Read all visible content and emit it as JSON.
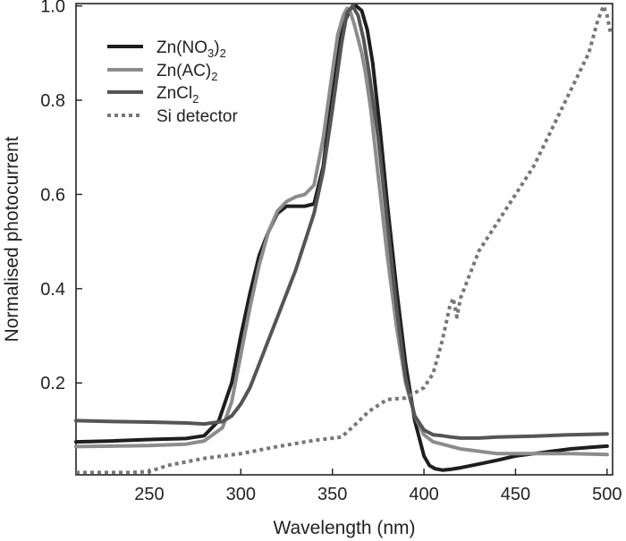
{
  "chart_data": {
    "type": "line",
    "xlabel": "Wavelength (nm)",
    "ylabel": "Normalised photocurrent",
    "xlim": [
      210,
      503
    ],
    "ylim": [
      0.005,
      1.005
    ],
    "xticks": [
      250,
      300,
      350,
      400,
      450,
      500
    ],
    "yticks": [
      0.2,
      0.4,
      0.6,
      0.8,
      1.0
    ],
    "xtick_labels": [
      "250",
      "300",
      "350",
      "400",
      "450",
      "500"
    ],
    "ytick_labels": [
      "0.2",
      "0.4",
      "0.6",
      "0.8",
      "1.0"
    ],
    "grid": false,
    "legend": {
      "position": "top-left",
      "entries": [
        {
          "base": "Zn(NO",
          "sub": "3",
          "tail": ")",
          "sub2": "2"
        },
        {
          "base": "Zn(AC)",
          "sub": "2",
          "tail": "",
          "sub2": ""
        },
        {
          "base": "ZnCl",
          "sub": "2",
          "tail": "",
          "sub2": ""
        },
        {
          "base": "Si detector",
          "sub": "",
          "tail": "",
          "sub2": ""
        }
      ]
    },
    "series": [
      {
        "name": "Zn(NO3)2",
        "color": "#1e1e1e",
        "dash": "solid",
        "x": [
          210,
          230,
          250,
          270,
          280,
          288,
          295,
          300,
          305,
          310,
          315,
          320,
          325,
          330,
          335,
          340,
          345,
          348,
          352,
          356,
          360,
          363,
          366,
          369,
          372,
          376,
          380,
          385,
          390,
          395,
          400,
          403,
          406,
          410,
          415,
          420,
          430,
          440,
          450,
          460,
          470,
          480,
          490,
          500
        ],
        "y": [
          0.075,
          0.077,
          0.08,
          0.082,
          0.088,
          0.12,
          0.2,
          0.3,
          0.39,
          0.47,
          0.52,
          0.56,
          0.575,
          0.575,
          0.575,
          0.58,
          0.66,
          0.76,
          0.88,
          0.96,
          0.995,
          1.0,
          0.99,
          0.95,
          0.88,
          0.74,
          0.58,
          0.4,
          0.24,
          0.12,
          0.045,
          0.025,
          0.018,
          0.015,
          0.017,
          0.02,
          0.028,
          0.036,
          0.045,
          0.05,
          0.055,
          0.06,
          0.063,
          0.066
        ]
      },
      {
        "name": "Zn(AC)2",
        "color": "#8c8c8c",
        "dash": "solid",
        "x": [
          210,
          230,
          250,
          270,
          280,
          290,
          295,
          300,
          305,
          310,
          315,
          320,
          325,
          330,
          335,
          340,
          345,
          350,
          353,
          356,
          358,
          360,
          362,
          364,
          366,
          368,
          371,
          375,
          380,
          385,
          390,
          395,
          400,
          405,
          410,
          415,
          420,
          430,
          440,
          460,
          480,
          500
        ],
        "y": [
          0.065,
          0.066,
          0.067,
          0.07,
          0.077,
          0.105,
          0.16,
          0.26,
          0.36,
          0.45,
          0.52,
          0.565,
          0.585,
          0.595,
          0.6,
          0.62,
          0.72,
          0.86,
          0.94,
          0.98,
          0.995,
          0.985,
          0.96,
          0.93,
          0.9,
          0.86,
          0.78,
          0.64,
          0.47,
          0.32,
          0.2,
          0.13,
          0.09,
          0.075,
          0.07,
          0.065,
          0.06,
          0.055,
          0.05,
          0.05,
          0.05,
          0.048
        ]
      },
      {
        "name": "ZnCl2",
        "color": "#555555",
        "dash": "solid",
        "x": [
          210,
          230,
          250,
          270,
          280,
          290,
          295,
          300,
          305,
          310,
          315,
          320,
          325,
          330,
          335,
          340,
          345,
          350,
          355,
          358,
          361,
          364,
          367,
          370,
          375,
          380,
          385,
          390,
          395,
          400,
          405,
          410,
          415,
          420,
          430,
          440,
          460,
          480,
          500
        ],
        "y": [
          0.12,
          0.118,
          0.117,
          0.115,
          0.113,
          0.118,
          0.13,
          0.155,
          0.19,
          0.24,
          0.29,
          0.34,
          0.39,
          0.44,
          0.5,
          0.56,
          0.65,
          0.78,
          0.92,
          0.985,
          1.0,
          0.98,
          0.93,
          0.86,
          0.72,
          0.54,
          0.36,
          0.21,
          0.13,
          0.1,
          0.09,
          0.088,
          0.085,
          0.083,
          0.083,
          0.085,
          0.087,
          0.09,
          0.092
        ]
      },
      {
        "name": "Si detector",
        "color": "#777777",
        "dash": "dotted",
        "x": [
          210,
          240,
          250,
          260,
          280,
          300,
          320,
          340,
          355,
          362,
          370,
          380,
          390,
          400,
          405,
          410,
          414,
          416,
          418,
          420,
          425,
          430,
          440,
          450,
          460,
          470,
          480,
          490,
          495,
          498,
          500,
          502
        ],
        "y": [
          0.01,
          0.01,
          0.012,
          0.025,
          0.04,
          0.05,
          0.065,
          0.078,
          0.085,
          0.11,
          0.14,
          0.165,
          0.168,
          0.19,
          0.22,
          0.29,
          0.36,
          0.38,
          0.34,
          0.38,
          0.43,
          0.48,
          0.54,
          0.6,
          0.66,
          0.74,
          0.82,
          0.9,
          0.97,
          1.0,
          0.98,
          0.94
        ]
      }
    ]
  }
}
